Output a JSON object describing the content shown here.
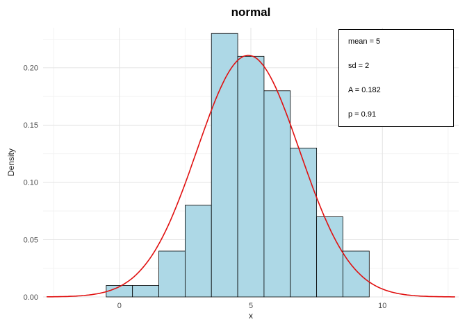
{
  "colors": {
    "bar_fill": "#add8e6",
    "bar_stroke": "#000000",
    "curve": "#e01010",
    "grid_major": "#e3e3e3",
    "grid_minor": "#f2f2f2",
    "axis_text": "#4d4d4d",
    "title": "#000000"
  },
  "chart_data": {
    "type": "bar",
    "subtype": "histogram-with-density-curve",
    "title": "normal",
    "xlabel": "x",
    "ylabel": "Density",
    "xlim": [
      -2.9,
      12.9
    ],
    "ylim": [
      0,
      0.235
    ],
    "grid": true,
    "x_ticks": [
      0,
      5,
      10
    ],
    "x_tick_labels": [
      "0",
      "5",
      "10"
    ],
    "x_minor": [
      -2.5,
      2.5,
      7.5,
      12.5
    ],
    "y_ticks": [
      0,
      0.05,
      0.1,
      0.15,
      0.2
    ],
    "y_tick_labels": [
      "0.00",
      "0.05",
      "0.10",
      "0.15",
      "0.20"
    ],
    "y_minor": [
      0.025,
      0.075,
      0.125,
      0.175,
      0.225
    ],
    "bin_width": 1,
    "bin_start": -0.5,
    "bar_values": [
      0.01,
      0.01,
      0.04,
      0.08,
      0.23,
      0.21,
      0.18,
      0.13,
      0.07,
      0.04
    ],
    "curve": {
      "shape": "gaussian",
      "mean": 4.9,
      "sd": 1.95,
      "peak": 0.211
    },
    "annotation_lines": [
      "mean = 5",
      "sd = 2",
      "A = 0.182",
      "p = 0.91"
    ],
    "legend": "none"
  }
}
